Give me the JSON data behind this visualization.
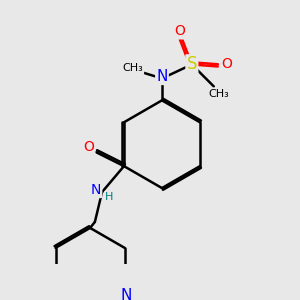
{
  "bg_color": "#e8e8e8",
  "bond_color": "#000000",
  "bond_width": 1.8,
  "atom_colors": {
    "N": "#0000ff",
    "O": "#ff0000",
    "S": "#cccc00",
    "C": "#000000",
    "H": "#008080"
  },
  "font_size": 10,
  "fig_size": [
    3.0,
    3.0
  ],
  "dpi": 100
}
